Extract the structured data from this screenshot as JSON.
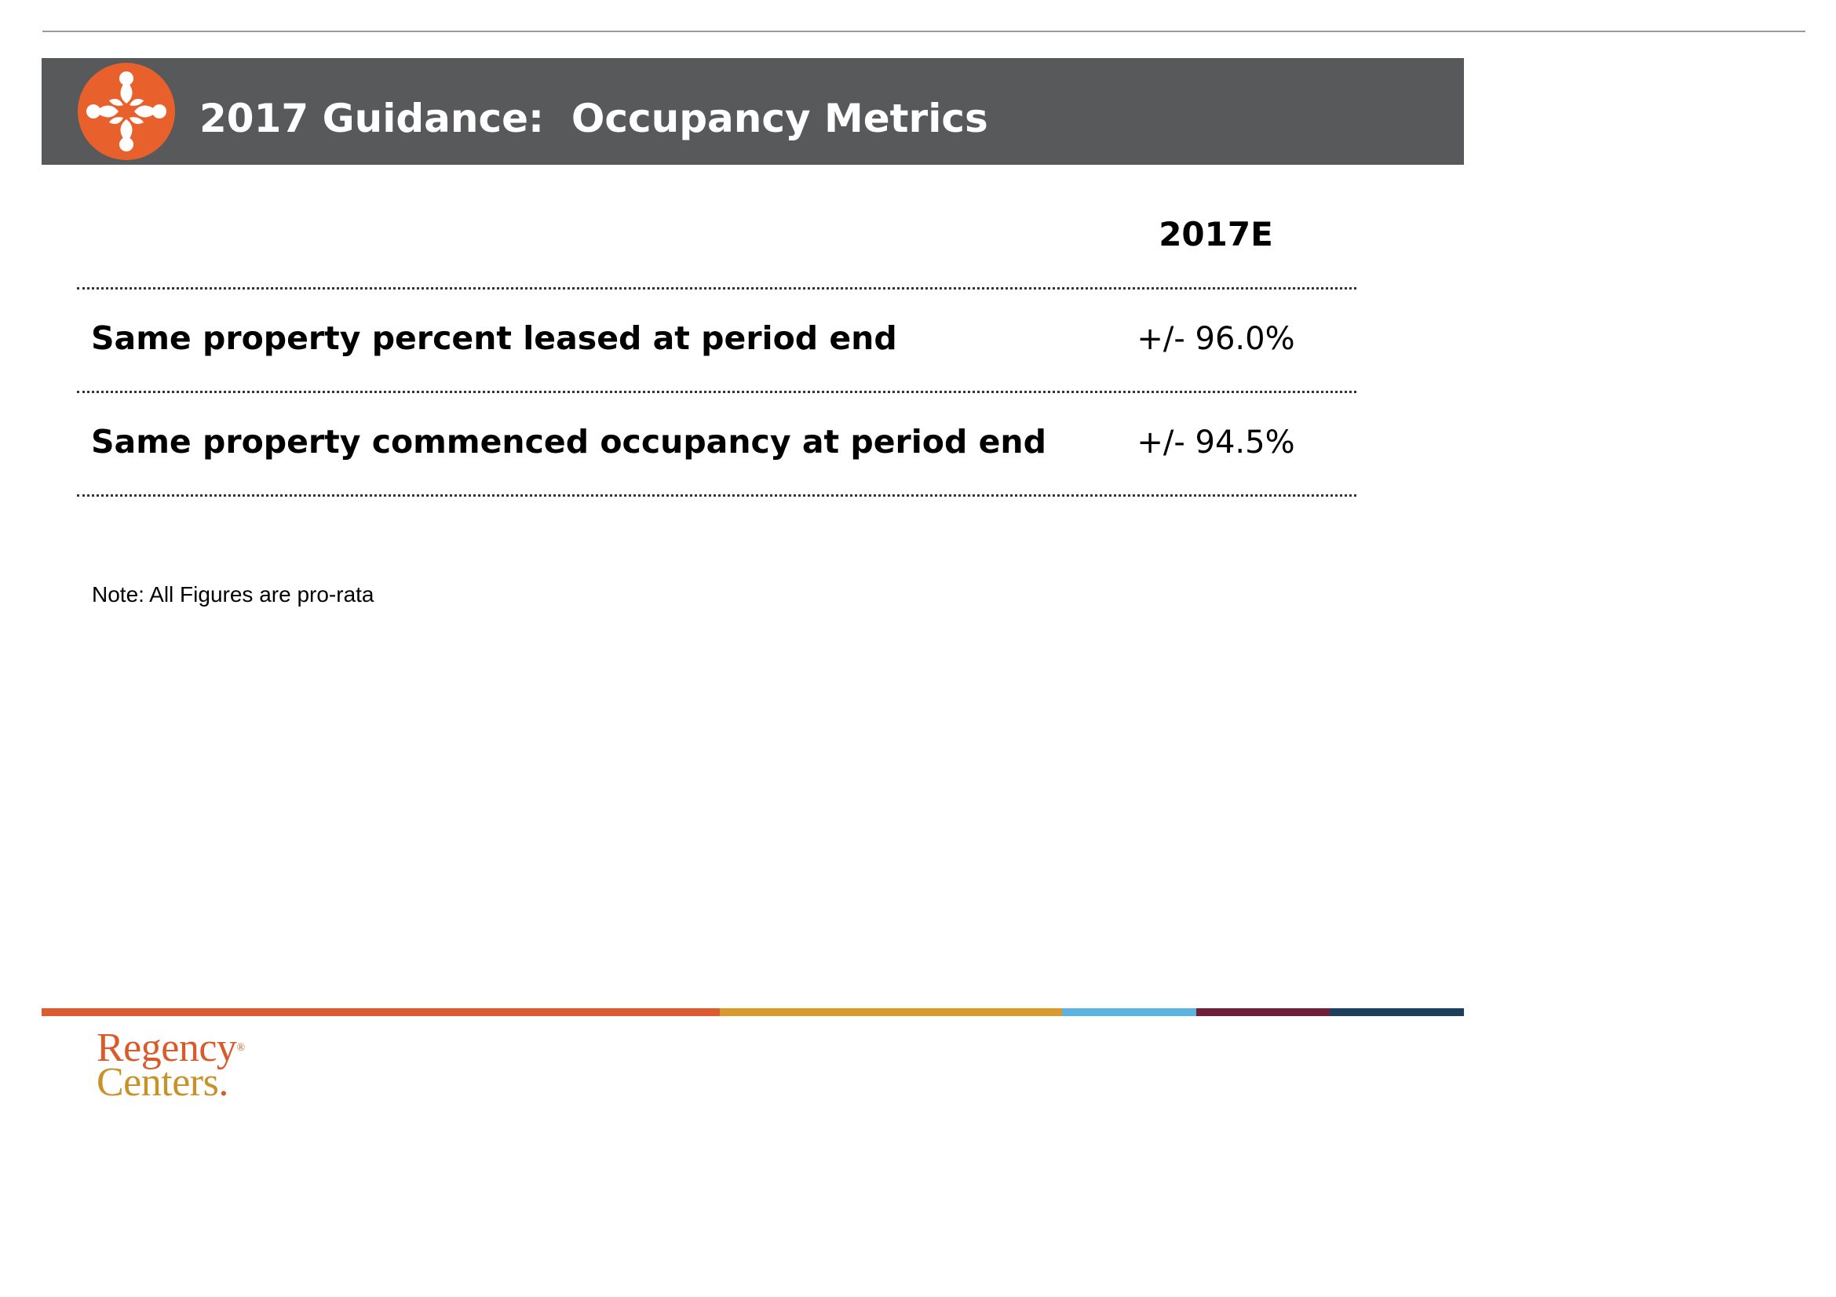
{
  "header": {
    "title": "2017 Guidance:  Occupancy Metrics",
    "logo_icon": "regency-quatrefoil-icon"
  },
  "table": {
    "column_header": "2017E",
    "rows": [
      {
        "label": "Same property percent leased at period end",
        "value": "+/- 96.0%"
      },
      {
        "label": "Same property commenced occupancy at period end",
        "value": "+/- 94.5%"
      }
    ]
  },
  "note": "Note: All Figures are pro-rata",
  "footer": {
    "brand_line1": "Regency",
    "brand_line2": "Centers",
    "brand_dot": ".",
    "brand_reg": "®",
    "stripe_colors": [
      "#de5a2e",
      "#d99a2b",
      "#5bb4e0",
      "#6f1f3a",
      "#1d3f5e"
    ]
  },
  "colors": {
    "header_bar": "#58595b",
    "logo_orange": "#e8612c"
  }
}
